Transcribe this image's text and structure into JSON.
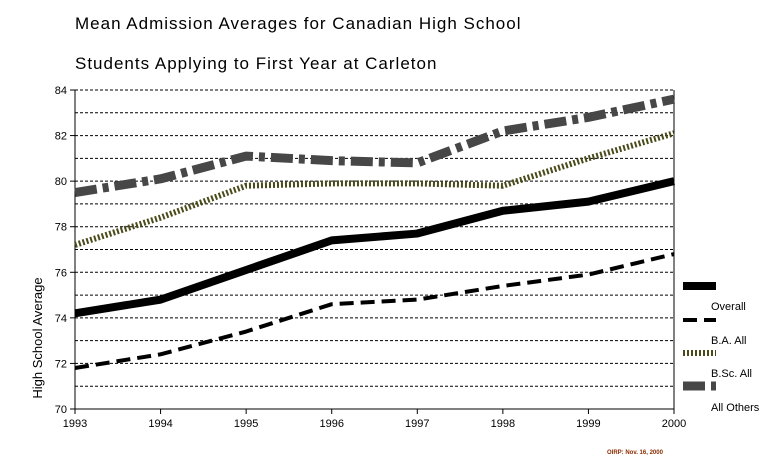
{
  "chart_data": {
    "type": "line",
    "title": "Mean Admission Averages for Canadian High School",
    "subtitle": "Students Applying to First Year at Carleton",
    "ylabel": "High School Average",
    "xlabel": "",
    "x": [
      "1993",
      "1994",
      "1995",
      "1996",
      "1997",
      "1998",
      "1999",
      "2000"
    ],
    "ylim": [
      70,
      84
    ],
    "yticks": [
      70,
      72,
      74,
      76,
      78,
      80,
      82,
      84
    ],
    "grid": "horizontal dashed, every 1 unit",
    "legend_position": "right",
    "series": [
      {
        "name": "Overall",
        "color": "#000000",
        "style": "solid",
        "values": [
          74.2,
          74.8,
          76.1,
          77.4,
          77.7,
          78.7,
          79.1,
          80.0
        ]
      },
      {
        "name": "B.A. All",
        "color": "#000000",
        "style": "dashed",
        "values": [
          71.8,
          72.4,
          73.4,
          74.6,
          74.8,
          75.4,
          75.9,
          76.8
        ]
      },
      {
        "name": "B.Sc. All",
        "color": "#4a4a1a",
        "style": "dotted",
        "values": [
          77.2,
          78.4,
          79.8,
          79.9,
          79.9,
          79.8,
          81.0,
          82.1
        ]
      },
      {
        "name": "All Others",
        "color": "#474747",
        "style": "dash-dot",
        "values": [
          79.5,
          80.1,
          81.1,
          80.9,
          80.8,
          82.2,
          82.8,
          83.6
        ]
      }
    ]
  },
  "footnote": "OIRP: Nov. 16, 2000"
}
